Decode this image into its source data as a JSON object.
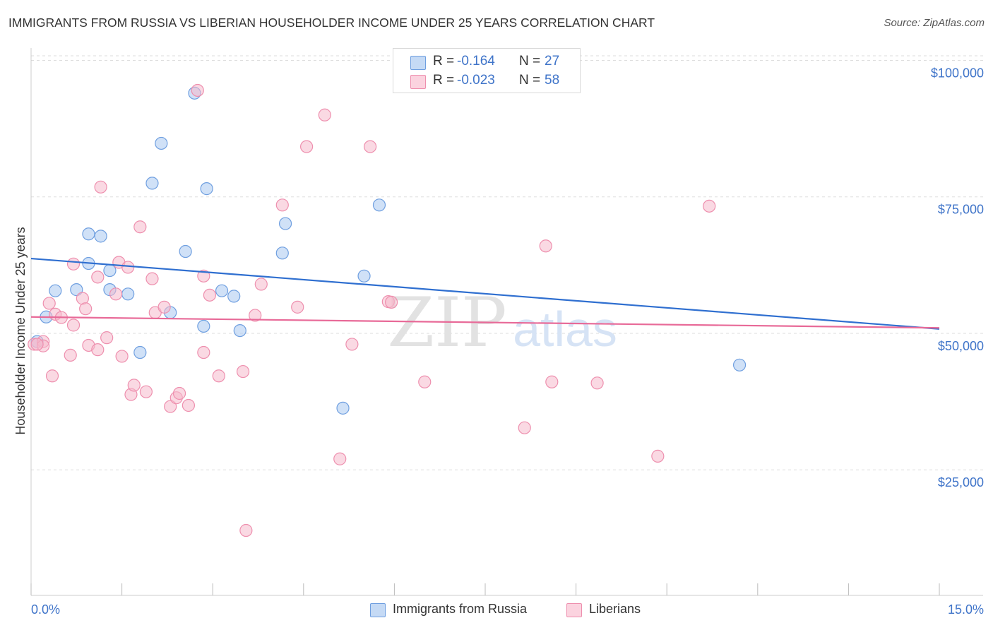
{
  "title": "IMMIGRANTS FROM RUSSIA VS LIBERIAN HOUSEHOLDER INCOME UNDER 25 YEARS CORRELATION CHART",
  "source": "Source: ZipAtlas.com",
  "watermark": {
    "zip": "ZIP",
    "atlas": "atlas"
  },
  "legend": {
    "series1": {
      "r_label": "R =",
      "r_value": "-0.164",
      "n_label": "N =",
      "n_value": "27"
    },
    "series2": {
      "r_label": "R =",
      "r_value": "-0.023",
      "n_label": "N =",
      "n_value": "58"
    }
  },
  "bottom_legend": {
    "series1": "Immigrants from Russia",
    "series2": "Liberians"
  },
  "colors": {
    "series1_fill": "#a9c8f0",
    "series1_stroke": "#6f9fe0",
    "series1_line": "#2f6fd0",
    "series2_fill": "#f6b9cc",
    "series2_stroke": "#ee8fae",
    "series2_line": "#e86a98",
    "axis_label": "#3f74c9",
    "grid": "#dddddd"
  },
  "chart_data": {
    "type": "scatter",
    "title": "IMMIGRANTS FROM RUSSIA VS LIBERIAN HOUSEHOLDER INCOME UNDER 25 YEARS CORRELATION CHART",
    "xlabel": "",
    "ylabel": "Householder Income Under 25 years",
    "xlim": [
      0,
      15
    ],
    "ylim": [
      2000,
      102000
    ],
    "x_tick_labels": [
      "0.0%",
      "15.0%"
    ],
    "y_ticks": [
      25000,
      50000,
      75000,
      100000
    ],
    "y_tick_labels": [
      "$25,000",
      "$50,000",
      "$75,000",
      "$100,000"
    ],
    "series": [
      {
        "name": "Immigrants from Russia",
        "points": [
          [
            0.1,
            48500
          ],
          [
            0.25,
            53000
          ],
          [
            0.4,
            57800
          ],
          [
            0.75,
            58000
          ],
          [
            0.95,
            62800
          ],
          [
            0.95,
            68200
          ],
          [
            1.15,
            67800
          ],
          [
            1.3,
            61500
          ],
          [
            1.3,
            58000
          ],
          [
            1.6,
            57200
          ],
          [
            1.8,
            46500
          ],
          [
            2.0,
            77500
          ],
          [
            2.15,
            84800
          ],
          [
            2.3,
            53800
          ],
          [
            2.55,
            65000
          ],
          [
            2.85,
            51300
          ],
          [
            2.9,
            76500
          ],
          [
            2.7,
            94000
          ],
          [
            3.15,
            57800
          ],
          [
            3.35,
            56800
          ],
          [
            3.45,
            50500
          ],
          [
            4.15,
            64700
          ],
          [
            4.2,
            70100
          ],
          [
            5.15,
            36300
          ],
          [
            5.5,
            60500
          ],
          [
            5.75,
            73500
          ],
          [
            11.7,
            44200
          ]
        ],
        "trend": {
          "x": [
            0,
            15
          ],
          "y": [
            63700,
            50800
          ]
        }
      },
      {
        "name": "Liberians",
        "points": [
          [
            0.05,
            48000
          ],
          [
            0.2,
            48500
          ],
          [
            0.2,
            47700
          ],
          [
            0.3,
            55500
          ],
          [
            0.35,
            42200
          ],
          [
            0.4,
            53500
          ],
          [
            0.5,
            52900
          ],
          [
            0.65,
            46000
          ],
          [
            0.7,
            51500
          ],
          [
            0.7,
            62700
          ],
          [
            0.85,
            56400
          ],
          [
            0.9,
            54500
          ],
          [
            0.95,
            47800
          ],
          [
            1.1,
            47000
          ],
          [
            1.1,
            60300
          ],
          [
            1.15,
            76800
          ],
          [
            1.25,
            49200
          ],
          [
            1.45,
            63000
          ],
          [
            1.4,
            57200
          ],
          [
            1.5,
            45800
          ],
          [
            1.6,
            62100
          ],
          [
            1.65,
            38800
          ],
          [
            1.7,
            40500
          ],
          [
            1.8,
            69500
          ],
          [
            1.9,
            39300
          ],
          [
            2.0,
            60000
          ],
          [
            2.05,
            53800
          ],
          [
            2.2,
            54800
          ],
          [
            2.3,
            36600
          ],
          [
            2.4,
            38200
          ],
          [
            2.45,
            39000
          ],
          [
            2.6,
            36800
          ],
          [
            2.75,
            94500
          ],
          [
            2.85,
            60500
          ],
          [
            2.85,
            46500
          ],
          [
            2.95,
            57000
          ],
          [
            3.1,
            42200
          ],
          [
            3.5,
            43000
          ],
          [
            3.55,
            13900
          ],
          [
            3.7,
            53300
          ],
          [
            3.8,
            59000
          ],
          [
            4.15,
            73500
          ],
          [
            4.4,
            54800
          ],
          [
            4.55,
            84200
          ],
          [
            4.85,
            90000
          ],
          [
            5.1,
            27000
          ],
          [
            5.3,
            48000
          ],
          [
            5.6,
            84200
          ],
          [
            5.9,
            55800
          ],
          [
            5.95,
            55700
          ],
          [
            6.5,
            41100
          ],
          [
            8.15,
            32700
          ],
          [
            8.5,
            66000
          ],
          [
            8.6,
            41100
          ],
          [
            9.35,
            40900
          ],
          [
            10.35,
            27500
          ],
          [
            11.2,
            73300
          ],
          [
            0.1,
            48000
          ]
        ],
        "trend": {
          "x": [
            0,
            15
          ],
          "y": [
            53000,
            51000
          ]
        }
      }
    ]
  }
}
